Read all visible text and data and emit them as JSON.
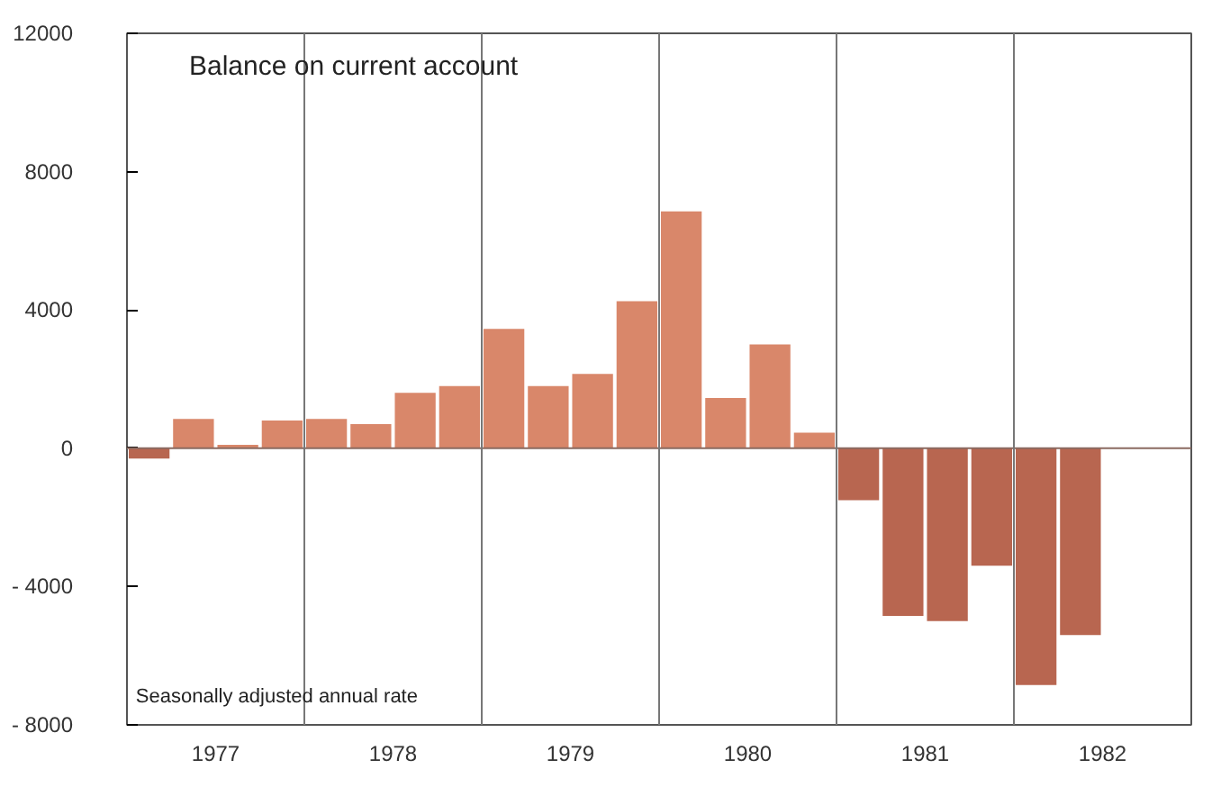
{
  "chart_data": {
    "type": "bar",
    "title": "Balance on current account",
    "annotations": [
      "Seasonally adjusted annual rate"
    ],
    "x": [
      1977.125,
      1977.375,
      1977.625,
      1977.875,
      1978.125,
      1978.375,
      1978.625,
      1978.875,
      1979.125,
      1979.375,
      1979.625,
      1979.875,
      1980.125,
      1980.375,
      1980.625,
      1980.875,
      1981.125,
      1981.375,
      1981.625,
      1981.875,
      1982.125,
      1982.375
    ],
    "values": [
      -300,
      850,
      100,
      800,
      850,
      700,
      1600,
      1800,
      3450,
      1800,
      2150,
      4250,
      6850,
      1450,
      3000,
      450,
      -1500,
      -4850,
      -5000,
      -3400,
      -6850,
      -5400
    ],
    "colors": [
      "#b86650",
      "#d9876a",
      "#d9876a",
      "#d9876a",
      "#d9876a",
      "#d9876a",
      "#d9876a",
      "#d9876a",
      "#d9876a",
      "#d9876a",
      "#d9876a",
      "#d9876a",
      "#d9876a",
      "#d9876a",
      "#d9876a",
      "#d9876a",
      "#b86650",
      "#b86650",
      "#b86650",
      "#b86650",
      "#b86650",
      "#b86650"
    ],
    "xlim": [
      1977,
      1983
    ],
    "xticks": [
      {
        "value": 1977.5,
        "label": "1977"
      },
      {
        "value": 1978.5,
        "label": "1978"
      },
      {
        "value": 1979.5,
        "label": "1979"
      },
      {
        "value": 1980.5,
        "label": "1980"
      },
      {
        "value": 1981.5,
        "label": "1981"
      },
      {
        "value": 1982.5,
        "label": "1982"
      }
    ],
    "ylim": [
      -8000,
      12000
    ],
    "yticks": [
      {
        "value": -8000,
        "label": "- 8000"
      },
      {
        "value": -4000,
        "label": "- 4000"
      },
      0,
      4000,
      8000,
      12000
    ],
    "ref_lines": [
      {
        "axis": "y",
        "value": 0,
        "color": "#8a6a60"
      },
      {
        "axis": "x",
        "value": 1978,
        "color": "#777777"
      },
      {
        "axis": "x",
        "value": 1979,
        "color": "#777777"
      },
      {
        "axis": "x",
        "value": 1980,
        "color": "#777777"
      },
      {
        "axis": "x",
        "value": 1981,
        "color": "#777777"
      },
      {
        "axis": "x",
        "value": 1982,
        "color": "#777777"
      }
    ],
    "grid": false
  }
}
